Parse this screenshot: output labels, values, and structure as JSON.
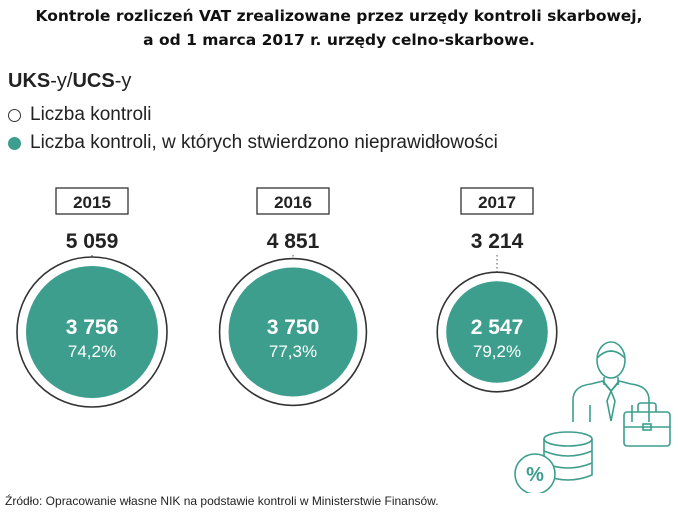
{
  "title_line1": "Kontrole rozliczeń VAT zrealizowane przez urzędy kontroli skarbowej,",
  "title_line2": "a od 1 marca 2017 r. urzędy celno-skarbowe.",
  "subtitle": {
    "bold1": "UKS",
    "mid": "-y/",
    "bold2": "UCS",
    "end": "-y"
  },
  "legend": [
    {
      "label": "Liczba kontroli",
      "style": "open"
    },
    {
      "label": "Liczba kontroli, w których stwierdzono nieprawidłowości",
      "style": "filled"
    }
  ],
  "source": "Źródło: Opracowanie własne NIK na podstawie kontroli w Ministerstwie Finansów.",
  "colors": {
    "accent": "#3d9e8e",
    "outline": "#333333",
    "text": "#222222"
  },
  "icons": [
    "person-icon",
    "briefcase-icon",
    "coin-stack-icon",
    "percent-icon"
  ],
  "chart_data": {
    "type": "bubble",
    "categories": [
      "2015",
      "2016",
      "2017"
    ],
    "series": [
      {
        "name": "Liczba kontroli",
        "values": [
          5059,
          4851,
          3214
        ],
        "labels": [
          "5 059",
          "4 851",
          "3 214"
        ]
      },
      {
        "name": "Liczba kontroli, w których stwierdzono nieprawidłowości",
        "values": [
          3756,
          3750,
          2547
        ],
        "labels": [
          "3 756",
          "3 750",
          "2 547"
        ]
      }
    ],
    "percent_labels": [
      "74,2%",
      "77,3%",
      "79,2%"
    ]
  }
}
